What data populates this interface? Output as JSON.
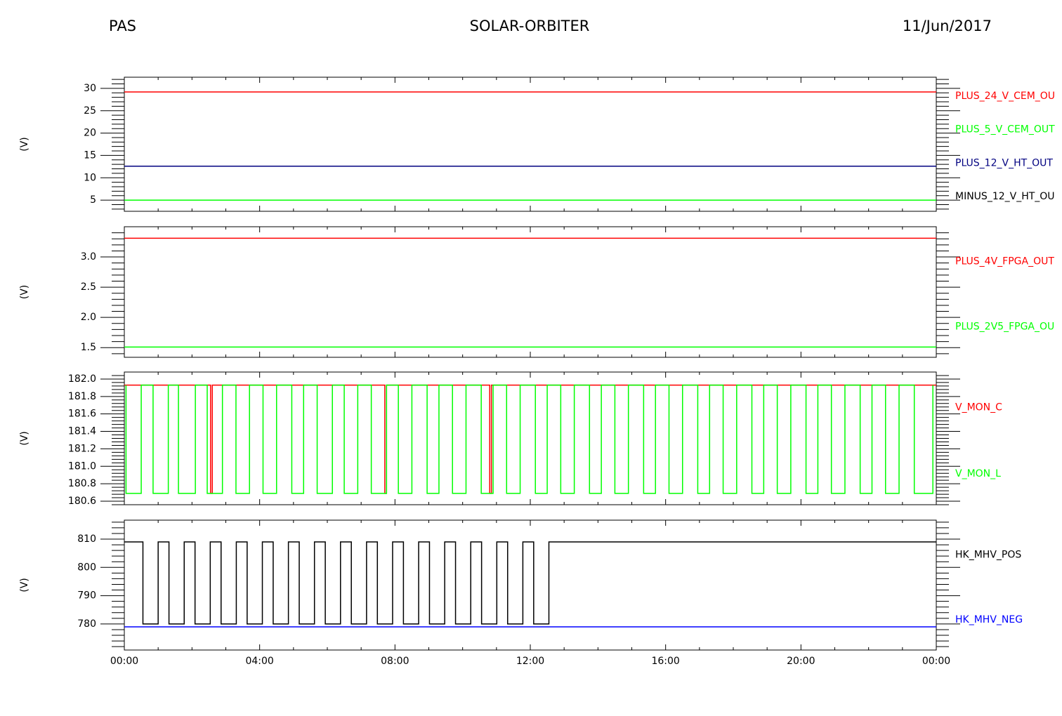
{
  "header": {
    "left": "PAS",
    "title": "SOLAR-ORBITER",
    "date": "11/Jun/2017"
  },
  "chart_data": [
    {
      "type": "line",
      "ylabel": "(V)",
      "ylim": [
        2.5,
        32.5
      ],
      "yticks": [
        5,
        10,
        15,
        20,
        25,
        30
      ],
      "series": [
        {
          "name": "PLUS_24_V_CEM_OU",
          "color": "#ff0000",
          "x": [
            0,
            24
          ],
          "values": [
            29.2,
            29.2
          ]
        },
        {
          "name": "PLUS_5_V_CEM_OUT",
          "color": "#00ff00",
          "x": [
            0,
            24
          ],
          "values": [
            5,
            5
          ]
        },
        {
          "name": "PLUS_12_V_HT_OUT",
          "color": "#000080",
          "x": [
            0,
            24
          ],
          "values": [
            12.6,
            12.6
          ]
        },
        {
          "name": "MINUS_12_V_HT_OU",
          "color": "#000000",
          "x": [
            0,
            24
          ],
          "values": [
            null,
            null
          ]
        }
      ]
    },
    {
      "type": "line",
      "ylabel": "(V)",
      "ylim": [
        1.34,
        3.5
      ],
      "yticks": [
        1.5,
        {
          "value": 2,
          "label": "2.0"
        },
        2.5,
        {
          "value": 3,
          "label": "3.0"
        }
      ],
      "series": [
        {
          "name": "PLUS_4V_FPGA_OUT",
          "color": "#ff0000",
          "x": [
            0,
            24
          ],
          "values": [
            3.31,
            3.31
          ]
        },
        {
          "name": "PLUS_2V5_FPGA_OU",
          "color": "#00ff00",
          "x": [
            0,
            24
          ],
          "values": [
            1.51,
            1.51
          ]
        }
      ]
    },
    {
      "type": "line",
      "ylabel": "(V)",
      "ylim": [
        180.56,
        182.08
      ],
      "yticks": [
        180.6,
        180.8,
        {
          "value": 181,
          "label": "181.0"
        },
        181.2,
        181.4,
        181.6,
        181.8,
        {
          "value": 182,
          "label": "182.0"
        }
      ],
      "series": [
        {
          "name": "V_MON_C",
          "color": "#ff0000",
          "x": [
            0,
            2.55,
            2.55,
            2.6,
            2.6,
            7.7,
            7.7,
            7.75,
            7.75,
            10.8,
            10.8,
            10.85,
            10.85,
            24
          ],
          "values": [
            181.93,
            181.93,
            180.69,
            180.69,
            181.93,
            181.93,
            180.69,
            180.69,
            181.93,
            181.93,
            180.69,
            180.69,
            181.93,
            181.93
          ]
        },
        {
          "name": "V_MON_L",
          "color": "#00ff00",
          "x": [
            0.05,
            0.05,
            0.5,
            0.5,
            0.85,
            0.85,
            1.3,
            1.3,
            1.6,
            1.6,
            2.1,
            2.1,
            2.45,
            2.45,
            2.9,
            2.9,
            3.3,
            3.3,
            3.7,
            3.7,
            4.1,
            4.1,
            4.5,
            4.5,
            4.95,
            4.95,
            5.3,
            5.3,
            5.7,
            5.7,
            6.15,
            6.15,
            6.5,
            6.5,
            6.9,
            6.9,
            7.3,
            7.3,
            7.75,
            7.75,
            8.1,
            8.1,
            8.5,
            8.5,
            8.95,
            8.95,
            9.3,
            9.3,
            9.7,
            9.7,
            10.1,
            10.1,
            10.55,
            10.55,
            10.9,
            10.9,
            11.3,
            11.3,
            11.7,
            11.7,
            12.15,
            12.15,
            12.5,
            12.5,
            12.9,
            12.9,
            13.3,
            13.3,
            13.75,
            13.75,
            14.1,
            14.1,
            14.5,
            14.5,
            14.9,
            14.9,
            15.35,
            15.35,
            15.7,
            15.7,
            16.1,
            16.1,
            16.5,
            16.5,
            16.95,
            16.95,
            17.3,
            17.3,
            17.7,
            17.7,
            18.1,
            18.1,
            18.55,
            18.55,
            18.9,
            18.9,
            19.3,
            19.3,
            19.7,
            19.7,
            20.15,
            20.15,
            20.5,
            20.5,
            20.9,
            20.9,
            21.3,
            21.3,
            21.75,
            21.75,
            22.1,
            22.1,
            22.5,
            22.5,
            22.9,
            22.9,
            23.35,
            23.35,
            23.9,
            23.9
          ],
          "values": [
            181.93,
            180.69,
            180.69,
            181.93,
            181.93,
            180.69,
            180.69,
            181.93,
            181.93,
            180.69,
            180.69,
            181.93,
            181.93,
            180.69,
            180.69,
            181.93,
            181.93,
            180.69,
            180.69,
            181.93,
            181.93,
            180.69,
            180.69,
            181.93,
            181.93,
            180.69,
            180.69,
            181.93,
            181.93,
            180.69,
            180.69,
            181.93,
            181.93,
            180.69,
            180.69,
            181.93,
            181.93,
            180.69,
            180.69,
            181.93,
            181.93,
            180.69,
            180.69,
            181.93,
            181.93,
            180.69,
            180.69,
            181.93,
            181.93,
            180.69,
            180.69,
            181.93,
            181.93,
            180.69,
            180.69,
            181.93,
            181.93,
            180.69,
            180.69,
            181.93,
            181.93,
            180.69,
            180.69,
            181.93,
            181.93,
            180.69,
            180.69,
            181.93,
            181.93,
            180.69,
            180.69,
            181.93,
            181.93,
            180.69,
            180.69,
            181.93,
            181.93,
            180.69,
            180.69,
            181.93,
            181.93,
            180.69,
            180.69,
            181.93,
            181.93,
            180.69,
            180.69,
            181.93,
            181.93,
            180.69,
            180.69,
            181.93,
            181.93,
            180.69,
            180.69,
            181.93,
            181.93,
            180.69,
            180.69,
            181.93,
            181.93,
            180.69,
            180.69,
            181.93,
            181.93,
            180.69,
            180.69,
            181.93,
            181.93,
            180.69,
            180.69,
            181.93,
            181.93,
            180.69,
            180.69,
            181.93,
            181.93,
            180.69,
            180.69,
            181.93
          ]
        }
      ]
    },
    {
      "type": "line",
      "ylabel": "(V)",
      "ylim": [
        770.8,
        816.7
      ],
      "yticks": [
        780,
        790,
        800,
        810
      ],
      "xlim": [
        0,
        24
      ],
      "xticks": [
        {
          "value": 0,
          "label": "00:00"
        },
        {
          "value": 4,
          "label": "04:00"
        },
        {
          "value": 8,
          "label": "08:00"
        },
        {
          "value": 12,
          "label": "12:00"
        },
        {
          "value": 16,
          "label": "16:00"
        },
        {
          "value": 20,
          "label": "20:00"
        },
        {
          "value": 24,
          "label": "00:00"
        }
      ],
      "series": [
        {
          "name": "HK_MHV_POS",
          "color": "#000000",
          "x": [
            0,
            0.55,
            0.55,
            1,
            1,
            1.32,
            1.32,
            1.77,
            1.77,
            2.09,
            2.09,
            2.54,
            2.54,
            2.86,
            2.86,
            3.31,
            3.31,
            3.63,
            3.63,
            4.08,
            4.08,
            4.4,
            4.4,
            4.85,
            4.85,
            5.17,
            5.17,
            5.62,
            5.62,
            5.94,
            5.94,
            6.39,
            6.39,
            6.71,
            6.71,
            7.16,
            7.16,
            7.48,
            7.48,
            7.93,
            7.93,
            8.25,
            8.25,
            8.7,
            8.7,
            9.02,
            9.02,
            9.47,
            9.47,
            9.79,
            9.79,
            10.24,
            10.24,
            10.56,
            10.56,
            11.01,
            11.01,
            11.33,
            11.33,
            11.78,
            11.78,
            12.1,
            12.1,
            12.55,
            12.55,
            24
          ],
          "values": [
            809,
            809,
            780,
            780,
            809,
            809,
            780,
            780,
            809,
            809,
            780,
            780,
            809,
            809,
            780,
            780,
            809,
            809,
            780,
            780,
            809,
            809,
            780,
            780,
            809,
            809,
            780,
            780,
            809,
            809,
            780,
            780,
            809,
            809,
            780,
            780,
            809,
            809,
            780,
            780,
            809,
            809,
            780,
            780,
            809,
            809,
            780,
            780,
            809,
            809,
            780,
            780,
            809,
            809,
            780,
            780,
            809,
            809,
            780,
            780,
            809,
            809,
            780,
            780,
            809,
            809
          ]
        },
        {
          "name": "HK_MHV_NEG",
          "color": "#0000ff",
          "x": [
            0,
            24
          ],
          "values": [
            779,
            779
          ]
        }
      ]
    }
  ]
}
